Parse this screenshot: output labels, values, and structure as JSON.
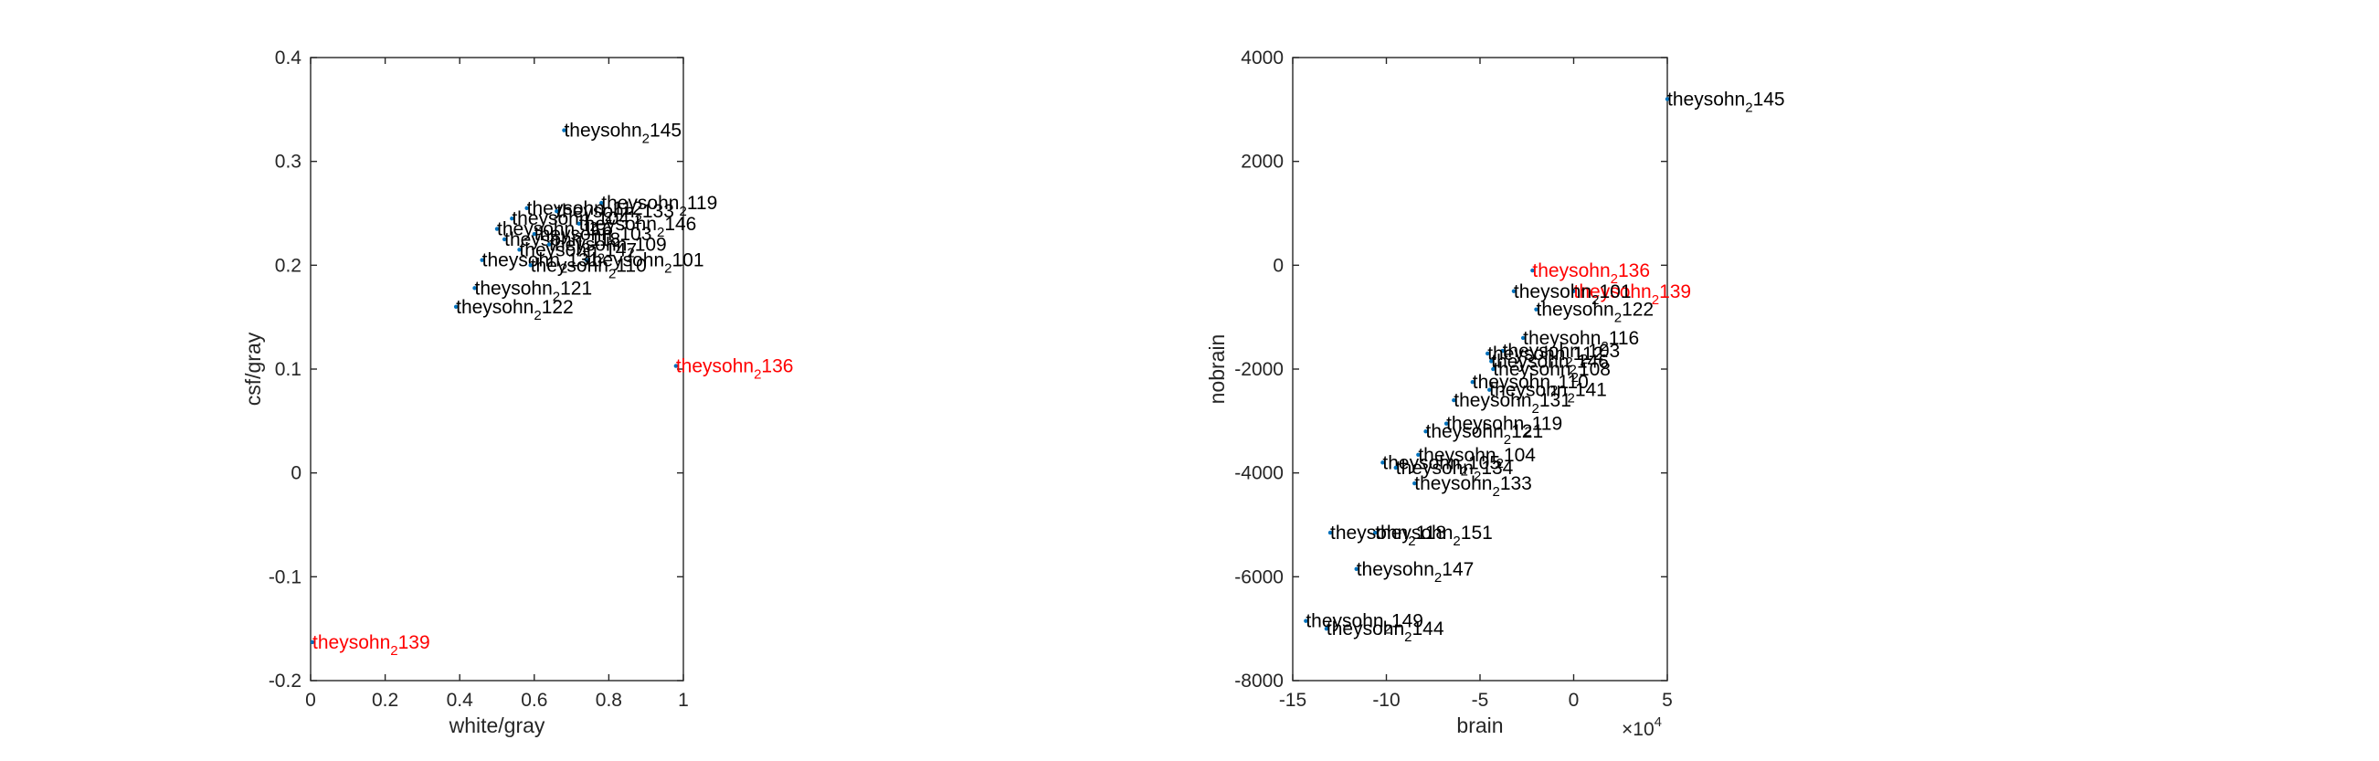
{
  "colors": {
    "axis": "#262626",
    "normal_label": "#000000",
    "outlier_label": "#ff0000",
    "marker": "#0072bd"
  },
  "chart_data": [
    {
      "type": "scatter",
      "xlabel": "white/gray",
      "ylabel": "csf/gray",
      "xlim": [
        0,
        1
      ],
      "ylim": [
        -0.2,
        0.4
      ],
      "xticks": [
        0,
        0.2,
        0.4,
        0.6,
        0.8,
        1
      ],
      "yticks": [
        -0.2,
        -0.1,
        0,
        0.1,
        0.2,
        0.3,
        0.4
      ],
      "xtick_labels": [
        "0",
        "0.2",
        "0.4",
        "0.6",
        "0.8",
        "1"
      ],
      "ytick_labels": [
        "-0.2",
        "-0.1",
        "0",
        "0.1",
        "0.2",
        "0.3",
        "0.4"
      ],
      "grid": false,
      "points": [
        {
          "x": 0.68,
          "y": 0.33,
          "base": "theysohn",
          "sub": "2",
          "num": "145",
          "outlier": false
        },
        {
          "x": 0.78,
          "y": 0.26,
          "base": "theysohn",
          "sub": "2",
          "num": "119",
          "outlier": false
        },
        {
          "x": 0.58,
          "y": 0.255,
          "base": "theysohn",
          "sub": "2",
          "num": "112",
          "outlier": false
        },
        {
          "x": 0.66,
          "y": 0.252,
          "base": "theysohn",
          "sub": "2",
          "num": "133",
          "outlier": false
        },
        {
          "x": 0.54,
          "y": 0.245,
          "base": "theysohn",
          "sub": "2",
          "num": "104",
          "outlier": false
        },
        {
          "x": 0.72,
          "y": 0.24,
          "base": "theysohn",
          "sub": "2",
          "num": "146",
          "outlier": false
        },
        {
          "x": 0.5,
          "y": 0.235,
          "base": "theysohn",
          "sub": "2",
          "num": "116",
          "outlier": false
        },
        {
          "x": 0.6,
          "y": 0.23,
          "base": "theysohn",
          "sub": "2",
          "num": "103",
          "outlier": false
        },
        {
          "x": 0.52,
          "y": 0.225,
          "base": "theysohn",
          "sub": "2",
          "num": "118",
          "outlier": false
        },
        {
          "x": 0.64,
          "y": 0.22,
          "base": "theysohn",
          "sub": "2",
          "num": "109",
          "outlier": false
        },
        {
          "x": 0.56,
          "y": 0.215,
          "base": "theysohn",
          "sub": "2",
          "num": "147",
          "outlier": false
        },
        {
          "x": 0.74,
          "y": 0.205,
          "base": "theysohn",
          "sub": "2",
          "num": "101",
          "outlier": false
        },
        {
          "x": 0.46,
          "y": 0.205,
          "base": "theysohn",
          "sub": "2",
          "num": "131",
          "outlier": false
        },
        {
          "x": 0.59,
          "y": 0.2,
          "base": "theysohn",
          "sub": "2",
          "num": "110",
          "outlier": false
        },
        {
          "x": 0.44,
          "y": 0.178,
          "base": "theysohn",
          "sub": "2",
          "num": "121",
          "outlier": false
        },
        {
          "x": 0.39,
          "y": 0.16,
          "base": "theysohn",
          "sub": "2",
          "num": "122",
          "outlier": false
        },
        {
          "x": 0.98,
          "y": 0.103,
          "base": "theysohn",
          "sub": "2",
          "num": "136",
          "outlier": true
        },
        {
          "x": 0.005,
          "y": -0.163,
          "base": "theysohn",
          "sub": "2",
          "num": "139",
          "outlier": true
        }
      ]
    },
    {
      "type": "scatter",
      "xlabel": "brain",
      "ylabel": "nobrain",
      "xlim": [
        -150000,
        50000
      ],
      "ylim": [
        -8000,
        4000
      ],
      "xticks": [
        -150000,
        -100000,
        -50000,
        0,
        50000
      ],
      "yticks": [
        -8000,
        -6000,
        -4000,
        -2000,
        0,
        2000,
        4000
      ],
      "xtick_labels": [
        "-15",
        "-10",
        "-5",
        "0",
        "5"
      ],
      "ytick_labels": [
        "-8000",
        "-6000",
        "-4000",
        "-2000",
        "0",
        "2000",
        "4000"
      ],
      "x_exponent_base": "×10",
      "x_exponent_power": "4",
      "grid": false,
      "points": [
        {
          "x": 50000,
          "y": 3200,
          "base": "theysohn",
          "sub": "2",
          "num": "145",
          "outlier": false
        },
        {
          "x": -22000,
          "y": -100,
          "base": "theysohn",
          "sub": "2",
          "num": "136",
          "outlier": true
        },
        {
          "x": 0,
          "y": -500,
          "base": "theysohn",
          "sub": "2",
          "num": "139",
          "outlier": true
        },
        {
          "x": -32000,
          "y": -500,
          "base": "theysohn",
          "sub": "2",
          "num": "101",
          "outlier": false
        },
        {
          "x": -20000,
          "y": -850,
          "base": "theysohn",
          "sub": "2",
          "num": "122",
          "outlier": false
        },
        {
          "x": -27000,
          "y": -1400,
          "base": "theysohn",
          "sub": "2",
          "num": "116",
          "outlier": false
        },
        {
          "x": -38000,
          "y": -1650,
          "base": "theysohn",
          "sub": "2",
          "num": "103",
          "outlier": false
        },
        {
          "x": -46000,
          "y": -1700,
          "base": "theysohn",
          "sub": "2",
          "num": "112",
          "outlier": false
        },
        {
          "x": -44000,
          "y": -1850,
          "base": "theysohn",
          "sub": "2",
          "num": "146",
          "outlier": false
        },
        {
          "x": -43000,
          "y": -2000,
          "base": "theysohn",
          "sub": "2",
          "num": "108",
          "outlier": false
        },
        {
          "x": -54000,
          "y": -2250,
          "base": "theysohn",
          "sub": "2",
          "num": "110",
          "outlier": false
        },
        {
          "x": -45000,
          "y": -2400,
          "base": "theysohn",
          "sub": "2",
          "num": "141",
          "outlier": false
        },
        {
          "x": -64000,
          "y": -2600,
          "base": "theysohn",
          "sub": "2",
          "num": "131",
          "outlier": false
        },
        {
          "x": -68000,
          "y": -3050,
          "base": "theysohn",
          "sub": "2",
          "num": "119",
          "outlier": false
        },
        {
          "x": -79000,
          "y": -3200,
          "base": "theysohn",
          "sub": "2",
          "num": "121",
          "outlier": false
        },
        {
          "x": -83000,
          "y": -3650,
          "base": "theysohn",
          "sub": "2",
          "num": "104",
          "outlier": false
        },
        {
          "x": -102000,
          "y": -3800,
          "base": "theysohn",
          "sub": "2",
          "num": "105",
          "outlier": false
        },
        {
          "x": -95000,
          "y": -3900,
          "base": "theysohn",
          "sub": "2",
          "num": "134",
          "outlier": false
        },
        {
          "x": -85000,
          "y": -4200,
          "base": "theysohn",
          "sub": "2",
          "num": "133",
          "outlier": false
        },
        {
          "x": -106000,
          "y": -5150,
          "base": "theysohn",
          "sub": "2",
          "num": "151",
          "outlier": false
        },
        {
          "x": -130000,
          "y": -5150,
          "base": "theysohn",
          "sub": "2",
          "num": "118",
          "outlier": false
        },
        {
          "x": -116000,
          "y": -5850,
          "base": "theysohn",
          "sub": "2",
          "num": "147",
          "outlier": false
        },
        {
          "x": -143000,
          "y": -6850,
          "base": "theysohn",
          "sub": "2",
          "num": "149",
          "outlier": false
        },
        {
          "x": -132000,
          "y": -7000,
          "base": "theysohn",
          "sub": "2",
          "num": "144",
          "outlier": false
        }
      ]
    }
  ]
}
